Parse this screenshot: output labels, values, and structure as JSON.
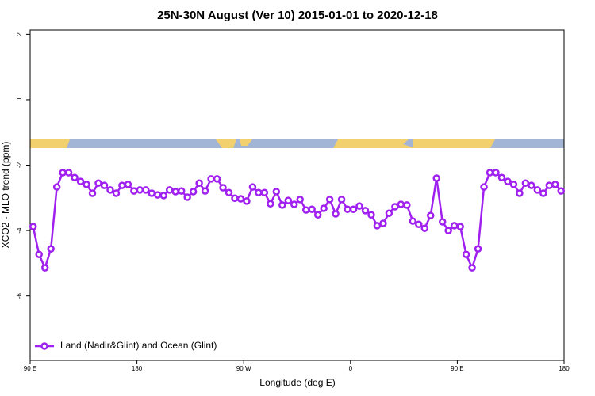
{
  "chart_data": {
    "type": "line",
    "title": "25N-30N August (Ver 10)   2015-01-01 to 2020-12-18",
    "x_label": "Longitude (deg E)",
    "y_label": "XCO2 - MLO trend (ppm)",
    "xlim": [
      90,
      540
    ],
    "xticks": [
      {
        "value": 90,
        "label": "90 E"
      },
      {
        "value": 180,
        "label": "180"
      },
      {
        "value": 270,
        "label": "90 W"
      },
      {
        "value": 360,
        "label": "0"
      },
      {
        "value": 450,
        "label": "90 E"
      },
      {
        "value": 540,
        "label": "180"
      }
    ],
    "ylim": [
      -7.97,
      2.13
    ],
    "yticks": [
      2,
      0,
      -2,
      -4,
      -6
    ],
    "legend": "lower left",
    "x": [
      92.5,
      97.5,
      102.5,
      107.5,
      112.5,
      117.5,
      122.5,
      127.5,
      132.5,
      137.5,
      142.5,
      147.5,
      152.5,
      157.5,
      162.5,
      167.5,
      172.5,
      177.5,
      182.5,
      187.5,
      192.5,
      197.5,
      202.5,
      207.5,
      212.5,
      217.5,
      222.5,
      227.5,
      232.5,
      237.5,
      242.5,
      247.5,
      252.5,
      257.5,
      262.5,
      267.5,
      272.5,
      277.5,
      282.5,
      287.5,
      292.5,
      297.5,
      302.5,
      307.5,
      312.5,
      317.5,
      322.5,
      327.5,
      332.5,
      337.5,
      342.5,
      347.5,
      352.5,
      357.5,
      362.5,
      367.5,
      372.5,
      377.5,
      382.5,
      387.5,
      392.5,
      397.5,
      402.5,
      407.5,
      412.5,
      417.5,
      422.5,
      427.5,
      432.5,
      437.5,
      442.5,
      447.5,
      452.5,
      457.5,
      462.5,
      467.5,
      472.5,
      477.5,
      482.5,
      487.5,
      492.5,
      497.5,
      502.5,
      507.5,
      512.5,
      517.5,
      522.5,
      527.5,
      532.5,
      537.5
    ],
    "series": [
      {
        "name": "Land (Nadir&Glint) and Ocean (Glint)",
        "color": "#a020f0",
        "values": [
          -3.88,
          -4.73,
          -5.14,
          -4.56,
          -2.67,
          -2.23,
          -2.23,
          -2.38,
          -2.5,
          -2.59,
          -2.86,
          -2.55,
          -2.62,
          -2.76,
          -2.86,
          -2.62,
          -2.59,
          -2.79,
          -2.76,
          -2.76,
          -2.86,
          -2.91,
          -2.93,
          -2.76,
          -2.81,
          -2.79,
          -2.98,
          -2.81,
          -2.55,
          -2.79,
          -2.42,
          -2.42,
          -2.69,
          -2.84,
          -3.01,
          -3.03,
          -3.1,
          -2.67,
          -2.84,
          -2.84,
          -3.18,
          -2.81,
          -3.22,
          -3.08,
          -3.2,
          -3.05,
          -3.37,
          -3.35,
          -3.52,
          -3.32,
          -3.05,
          -3.49,
          -3.05,
          -3.35,
          -3.35,
          -3.25,
          -3.39,
          -3.52,
          -3.85,
          -3.78,
          -3.47,
          -3.27,
          -3.2,
          -3.22,
          -3.71,
          -3.81,
          -3.93,
          -3.54,
          -2.4,
          -3.73,
          -4.0,
          -3.85,
          -3.88,
          -4.73,
          -5.14,
          -4.56,
          -2.67,
          -2.23,
          -2.23,
          -2.38,
          -2.5,
          -2.59,
          -2.86,
          -2.55,
          -2.62,
          -2.76,
          -2.86,
          -2.62,
          -2.59,
          -2.79
        ]
      }
    ]
  }
}
